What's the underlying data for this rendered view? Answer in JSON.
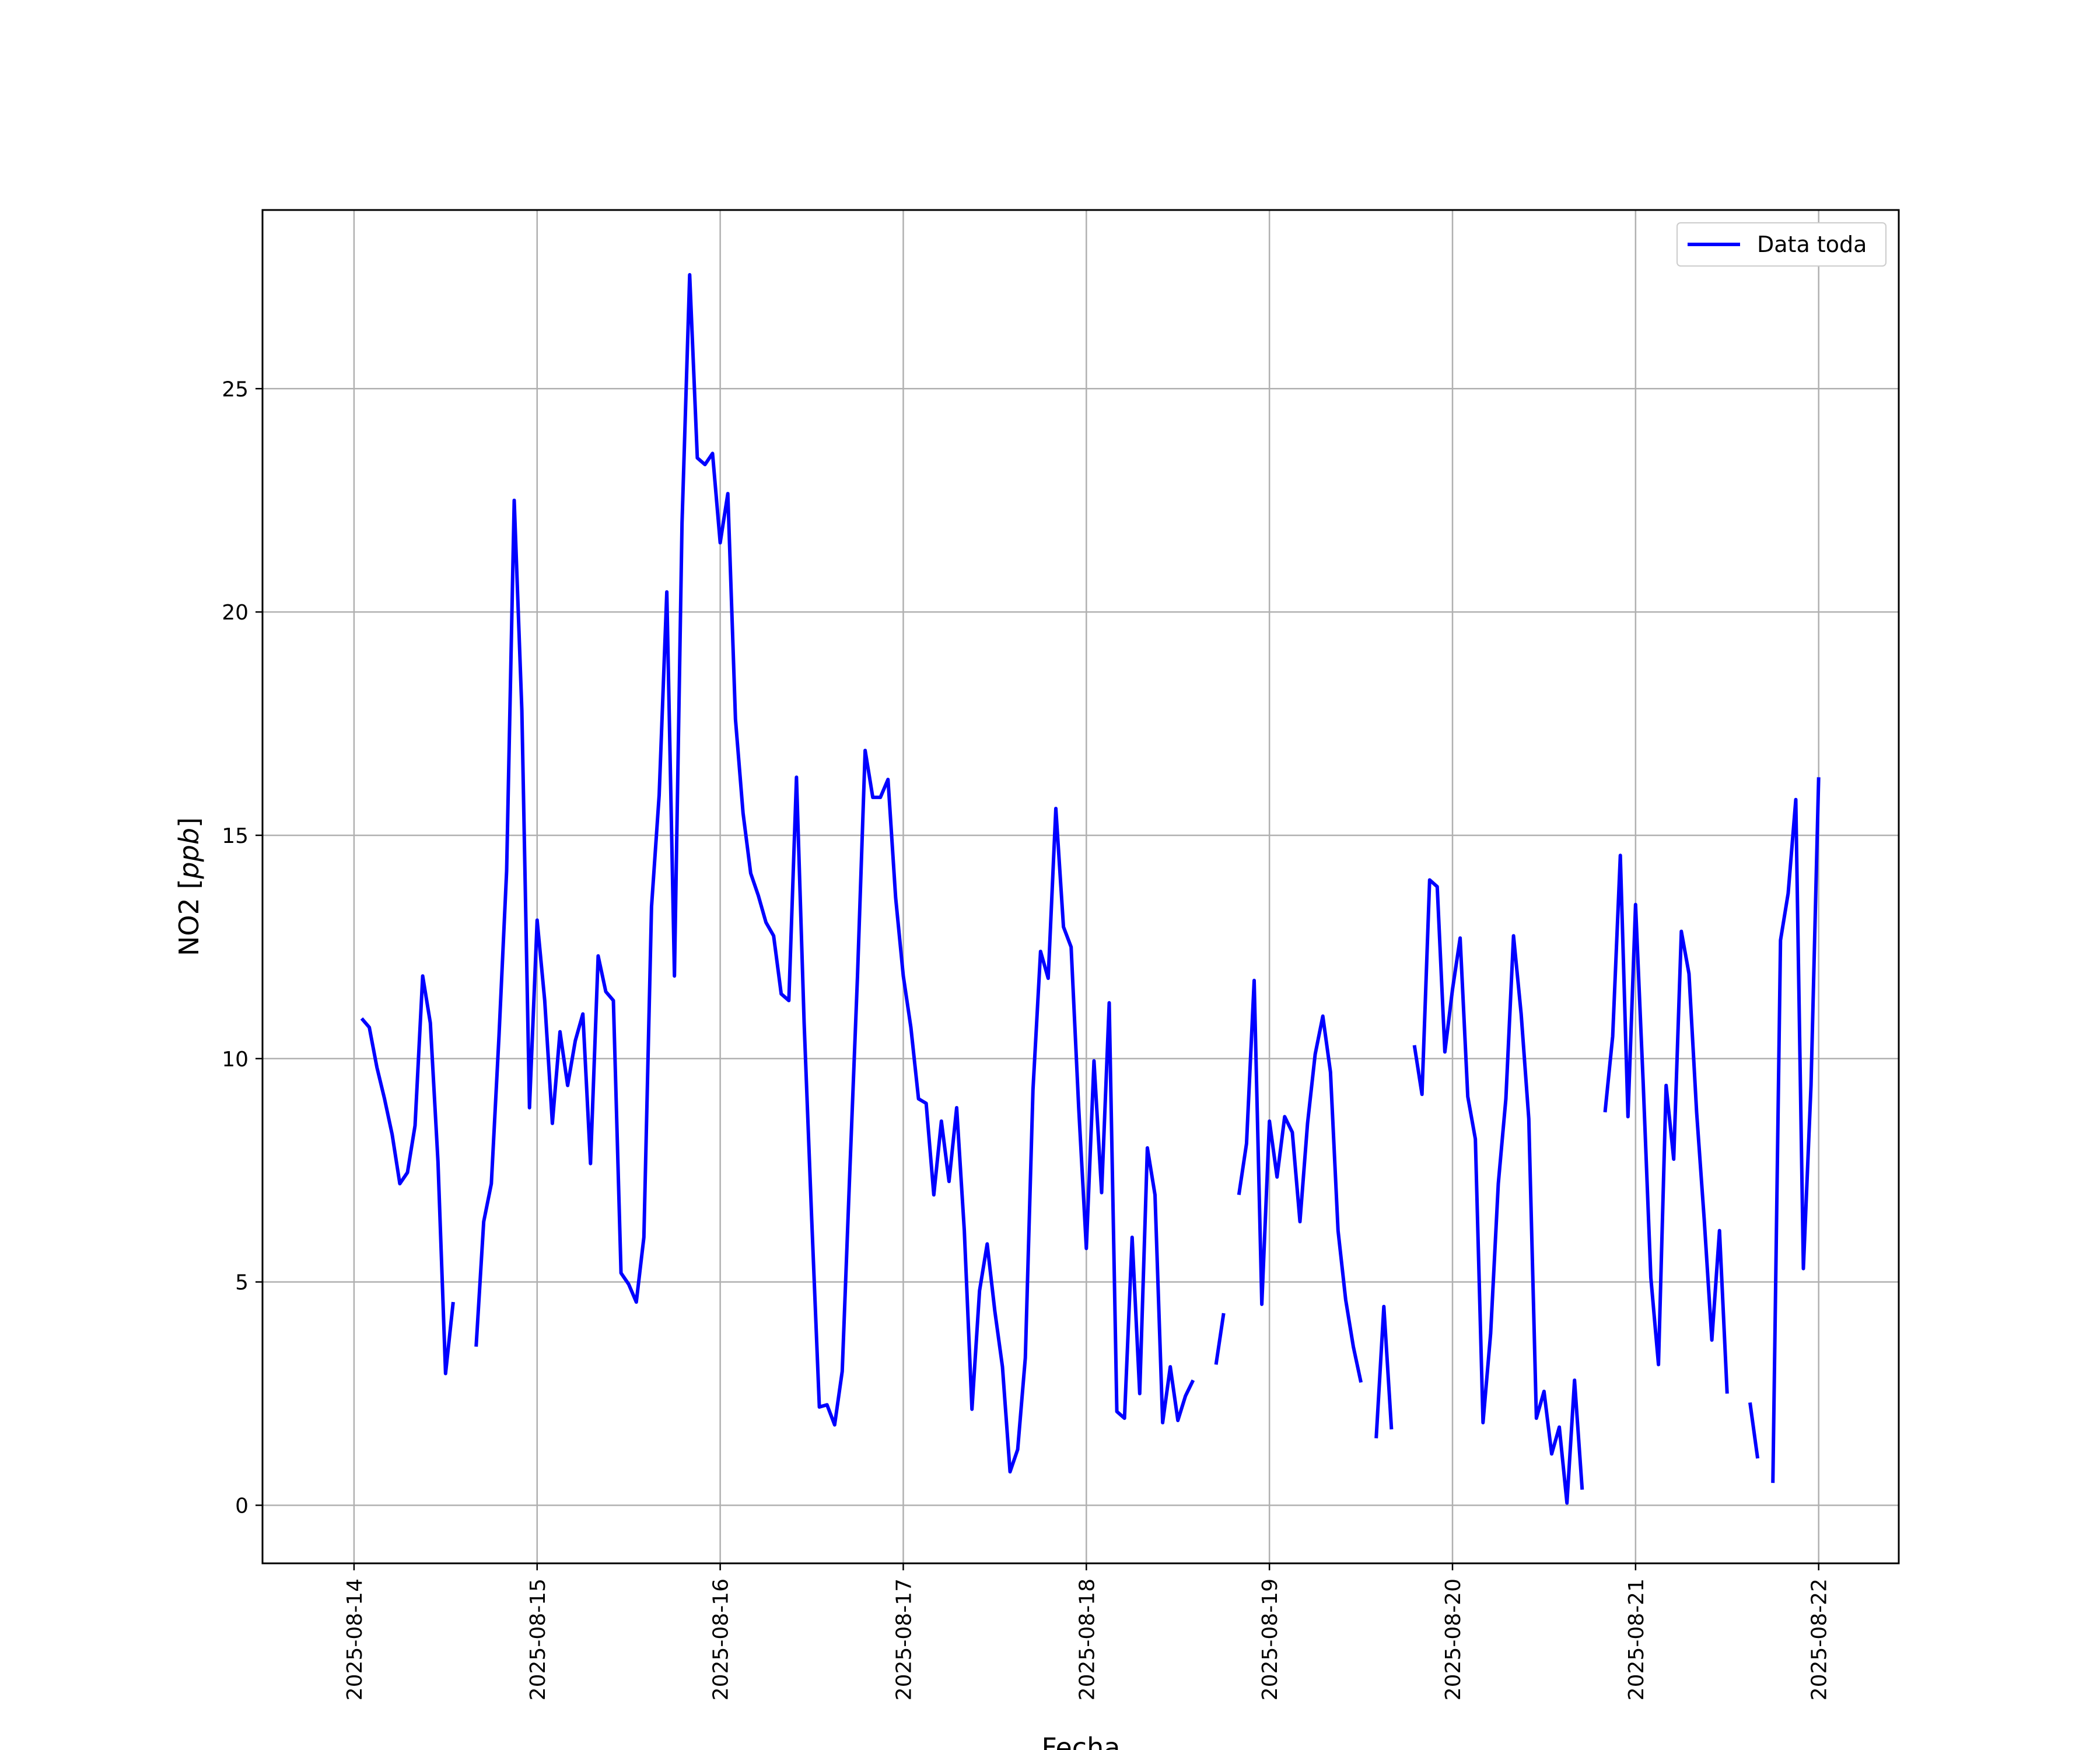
{
  "chart_data": {
    "type": "line",
    "title": "",
    "xlabel": "Fecha",
    "ylabel": "NO2 [ppb]",
    "ylabel_main": "NO2 [",
    "ylabel_unit": "ppb",
    "ylabel_close": "]",
    "x_tick_labels": [
      "2025-08-14",
      "2025-08-15",
      "2025-08-16",
      "2025-08-17",
      "2025-08-18",
      "2025-08-19",
      "2025-08-20",
      "2025-08-21",
      "2025-08-22"
    ],
    "y_tick_labels": [
      "0",
      "5",
      "10",
      "15",
      "20",
      "25"
    ],
    "xlim": [
      "2025-08-13 12:00",
      "2025-08-22 10:30"
    ],
    "ylim": [
      -1.3,
      29.0
    ],
    "grid": true,
    "legend_position": "top-right",
    "colors": {
      "line": "#0000ff",
      "grid": "#b0b0b0",
      "frame": "#000000"
    },
    "series": [
      {
        "name": "Data toda",
        "segments": [
          [
            [
              "2025-08-14 01:00",
              10.9
            ],
            [
              "2025-08-14 02:00",
              10.7
            ],
            [
              "2025-08-14 03:00",
              9.8
            ],
            [
              "2025-08-14 04:00",
              9.1
            ],
            [
              "2025-08-14 05:00",
              8.3
            ],
            [
              "2025-08-14 06:00",
              7.2
            ],
            [
              "2025-08-14 07:00",
              7.45
            ],
            [
              "2025-08-14 08:00",
              8.5
            ],
            [
              "2025-08-14 09:00",
              11.85
            ],
            [
              "2025-08-14 10:00",
              10.8
            ],
            [
              "2025-08-14 11:00",
              7.7
            ],
            [
              "2025-08-14 12:00",
              2.95
            ],
            [
              "2025-08-14 13:00",
              4.55
            ]
          ],
          [
            [
              "2025-08-14 16:00",
              3.55
            ],
            [
              "2025-08-14 17:00",
              6.35
            ],
            [
              "2025-08-14 18:00",
              7.2
            ],
            [
              "2025-08-14 19:00",
              10.5
            ],
            [
              "2025-08-14 20:00",
              14.2
            ],
            [
              "2025-08-14 21:00",
              22.5
            ],
            [
              "2025-08-14 22:00",
              17.8
            ],
            [
              "2025-08-14 23:00",
              8.9
            ],
            [
              "2025-08-15 00:00",
              13.1
            ],
            [
              "2025-08-15 01:00",
              11.3
            ],
            [
              "2025-08-15 02:00",
              8.55
            ],
            [
              "2025-08-15 03:00",
              10.6
            ],
            [
              "2025-08-15 04:00",
              9.4
            ],
            [
              "2025-08-15 05:00",
              10.4
            ],
            [
              "2025-08-15 06:00",
              11.0
            ],
            [
              "2025-08-15 07:00",
              7.65
            ],
            [
              "2025-08-15 08:00",
              12.3
            ],
            [
              "2025-08-15 09:00",
              11.5
            ],
            [
              "2025-08-15 10:00",
              11.3
            ],
            [
              "2025-08-15 11:00",
              5.2
            ],
            [
              "2025-08-15 12:00",
              4.95
            ],
            [
              "2025-08-15 13:00",
              4.55
            ],
            [
              "2025-08-15 14:00",
              6.0
            ],
            [
              "2025-08-15 15:00",
              13.4
            ],
            [
              "2025-08-15 16:00",
              15.9
            ],
            [
              "2025-08-15 17:00",
              20.45
            ],
            [
              "2025-08-15 18:00",
              11.85
            ],
            [
              "2025-08-15 19:00",
              22.0
            ],
            [
              "2025-08-15 20:00",
              27.55
            ],
            [
              "2025-08-15 21:00",
              23.45
            ],
            [
              "2025-08-15 22:00",
              23.3
            ],
            [
              "2025-08-15 23:00",
              23.55
            ],
            [
              "2025-08-16 00:00",
              21.55
            ],
            [
              "2025-08-16 01:00",
              22.65
            ],
            [
              "2025-08-16 02:00",
              17.6
            ],
            [
              "2025-08-16 03:00",
              15.5
            ],
            [
              "2025-08-16 04:00",
              14.15
            ],
            [
              "2025-08-16 05:00",
              13.65
            ],
            [
              "2025-08-16 06:00",
              13.05
            ],
            [
              "2025-08-16 07:00",
              12.75
            ],
            [
              "2025-08-16 08:00",
              11.45
            ],
            [
              "2025-08-16 09:00",
              11.3
            ],
            [
              "2025-08-16 10:00",
              16.3
            ],
            [
              "2025-08-16 11:00",
              10.8
            ],
            [
              "2025-08-16 12:00",
              6.4
            ],
            [
              "2025-08-16 13:00",
              2.2
            ],
            [
              "2025-08-16 14:00",
              2.25
            ],
            [
              "2025-08-16 15:00",
              1.8
            ],
            [
              "2025-08-16 16:00",
              3.0
            ],
            [
              "2025-08-16 17:00",
              7.5
            ],
            [
              "2025-08-16 18:00",
              11.85
            ],
            [
              "2025-08-16 19:00",
              16.9
            ],
            [
              "2025-08-16 20:00",
              15.85
            ],
            [
              "2025-08-16 21:00",
              15.85
            ],
            [
              "2025-08-16 22:00",
              16.25
            ],
            [
              "2025-08-16 23:00",
              13.6
            ],
            [
              "2025-08-17 00:00",
              11.85
            ],
            [
              "2025-08-17 01:00",
              10.7
            ],
            [
              "2025-08-17 02:00",
              9.1
            ],
            [
              "2025-08-17 03:00",
              9.0
            ],
            [
              "2025-08-17 04:00",
              6.95
            ],
            [
              "2025-08-17 05:00",
              8.6
            ],
            [
              "2025-08-17 06:00",
              7.25
            ],
            [
              "2025-08-17 07:00",
              8.9
            ],
            [
              "2025-08-17 08:00",
              6.15
            ],
            [
              "2025-08-17 09:00",
              2.15
            ],
            [
              "2025-08-17 10:00",
              4.8
            ],
            [
              "2025-08-17 11:00",
              5.85
            ],
            [
              "2025-08-17 12:00",
              4.35
            ],
            [
              "2025-08-17 13:00",
              3.1
            ],
            [
              "2025-08-17 14:00",
              0.75
            ],
            [
              "2025-08-17 15:00",
              1.25
            ],
            [
              "2025-08-17 16:00",
              3.3
            ],
            [
              "2025-08-17 17:00",
              9.3
            ],
            [
              "2025-08-17 18:00",
              12.4
            ],
            [
              "2025-08-17 19:00",
              11.8
            ],
            [
              "2025-08-17 20:00",
              15.6
            ],
            [
              "2025-08-17 21:00",
              12.95
            ],
            [
              "2025-08-17 22:00",
              12.5
            ],
            [
              "2025-08-17 23:00",
              8.9
            ],
            [
              "2025-08-18 00:00",
              5.75
            ],
            [
              "2025-08-18 01:00",
              9.95
            ],
            [
              "2025-08-18 02:00",
              7.0
            ],
            [
              "2025-08-18 03:00",
              11.25
            ],
            [
              "2025-08-18 04:00",
              2.1
            ],
            [
              "2025-08-18 05:00",
              1.95
            ],
            [
              "2025-08-18 06:00",
              6.0
            ],
            [
              "2025-08-18 07:00",
              2.5
            ],
            [
              "2025-08-18 08:00",
              8.0
            ],
            [
              "2025-08-18 09:00",
              6.95
            ],
            [
              "2025-08-18 10:00",
              1.85
            ],
            [
              "2025-08-18 11:00",
              3.1
            ],
            [
              "2025-08-18 12:00",
              1.9
            ],
            [
              "2025-08-18 13:00",
              2.45
            ],
            [
              "2025-08-18 14:00",
              2.8
            ]
          ],
          [
            [
              "2025-08-18 17:00",
              3.15
            ],
            [
              "2025-08-18 18:00",
              4.3
            ]
          ],
          [
            [
              "2025-08-18 20:00",
              6.95
            ],
            [
              "2025-08-18 21:00",
              8.1
            ],
            [
              "2025-08-18 22:00",
              11.75
            ],
            [
              "2025-08-18 23:00",
              4.5
            ],
            [
              "2025-08-19 00:00",
              8.6
            ],
            [
              "2025-08-19 01:00",
              7.35
            ],
            [
              "2025-08-19 02:00",
              8.7
            ],
            [
              "2025-08-19 03:00",
              8.35
            ],
            [
              "2025-08-19 04:00",
              6.35
            ],
            [
              "2025-08-19 05:00",
              8.55
            ],
            [
              "2025-08-19 06:00",
              10.1
            ],
            [
              "2025-08-19 07:00",
              10.95
            ],
            [
              "2025-08-19 08:00",
              9.7
            ],
            [
              "2025-08-19 09:00",
              6.15
            ],
            [
              "2025-08-19 10:00",
              4.6
            ],
            [
              "2025-08-19 11:00",
              3.55
            ],
            [
              "2025-08-19 12:00",
              2.75
            ]
          ],
          [
            [
              "2025-08-19 14:00",
              1.5
            ],
            [
              "2025-08-19 15:00",
              4.45
            ],
            [
              "2025-08-19 16:00",
              1.7
            ]
          ],
          [
            [
              "2025-08-19 19:00",
              10.3
            ],
            [
              "2025-08-19 20:00",
              9.2
            ],
            [
              "2025-08-19 21:00",
              14.0
            ],
            [
              "2025-08-19 22:00",
              13.85
            ],
            [
              "2025-08-19 23:00",
              10.15
            ],
            [
              "2025-08-20 00:00",
              11.55
            ],
            [
              "2025-08-20 01:00",
              12.7
            ],
            [
              "2025-08-20 02:00",
              9.15
            ],
            [
              "2025-08-20 03:00",
              8.2
            ],
            [
              "2025-08-20 04:00",
              1.85
            ],
            [
              "2025-08-20 05:00",
              3.85
            ],
            [
              "2025-08-20 06:00",
              7.2
            ],
            [
              "2025-08-20 07:00",
              9.1
            ],
            [
              "2025-08-20 08:00",
              12.75
            ],
            [
              "2025-08-20 09:00",
              11.0
            ],
            [
              "2025-08-20 10:00",
              8.65
            ],
            [
              "2025-08-20 11:00",
              1.95
            ],
            [
              "2025-08-20 12:00",
              2.55
            ],
            [
              "2025-08-20 13:00",
              1.15
            ],
            [
              "2025-08-20 14:00",
              1.75
            ],
            [
              "2025-08-20 15:00",
              0.05
            ],
            [
              "2025-08-20 16:00",
              2.8
            ],
            [
              "2025-08-20 17:00",
              0.35
            ]
          ],
          [
            [
              "2025-08-20 20:00",
              8.8
            ],
            [
              "2025-08-20 21:00",
              10.5
            ],
            [
              "2025-08-20 22:00",
              14.55
            ],
            [
              "2025-08-20 23:00",
              8.7
            ],
            [
              "2025-08-21 00:00",
              13.45
            ],
            [
              "2025-08-21 01:00",
              9.45
            ],
            [
              "2025-08-21 02:00",
              5.1
            ],
            [
              "2025-08-21 03:00",
              3.15
            ],
            [
              "2025-08-21 04:00",
              9.4
            ],
            [
              "2025-08-21 05:00",
              7.75
            ],
            [
              "2025-08-21 06:00",
              12.85
            ],
            [
              "2025-08-21 07:00",
              11.9
            ],
            [
              "2025-08-21 08:00",
              8.8
            ],
            [
              "2025-08-21 09:00",
              6.4
            ],
            [
              "2025-08-21 10:00",
              3.7
            ],
            [
              "2025-08-21 11:00",
              6.15
            ],
            [
              "2025-08-21 12:00",
              2.5
            ]
          ],
          [
            [
              "2025-08-21 15:00",
              2.3
            ],
            [
              "2025-08-21 16:00",
              1.05
            ]
          ],
          [
            [
              "2025-08-21 18:00",
              0.5
            ],
            [
              "2025-08-21 19:00",
              12.65
            ],
            [
              "2025-08-21 20:00",
              13.7
            ],
            [
              "2025-08-21 21:00",
              15.8
            ],
            [
              "2025-08-21 22:00",
              5.3
            ],
            [
              "2025-08-21 23:00",
              9.4
            ],
            [
              "2025-08-22 00:00",
              16.3
            ]
          ]
        ]
      }
    ]
  }
}
